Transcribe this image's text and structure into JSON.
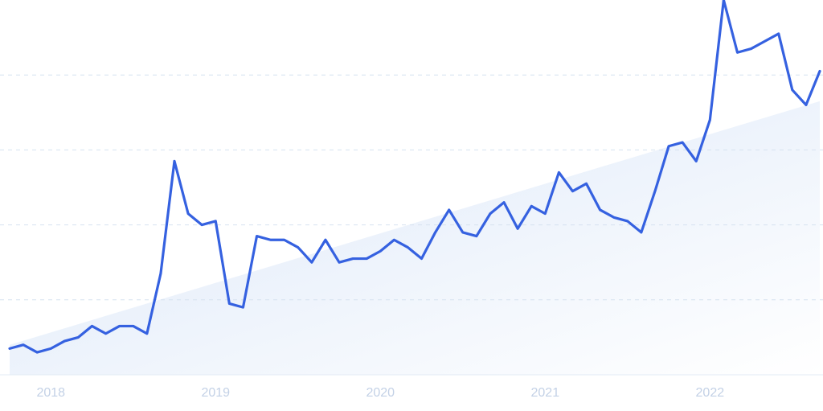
{
  "chart_data": {
    "type": "line",
    "categories": [
      null,
      null,
      null,
      "2018",
      null,
      null,
      null,
      null,
      null,
      null,
      null,
      null,
      null,
      null,
      null,
      "2019",
      null,
      null,
      null,
      null,
      null,
      null,
      null,
      null,
      null,
      null,
      null,
      "2020",
      null,
      null,
      null,
      null,
      null,
      null,
      null,
      null,
      null,
      null,
      null,
      "2021",
      null,
      null,
      null,
      null,
      null,
      null,
      null,
      null,
      null,
      null,
      null,
      "2022",
      null,
      null,
      null,
      null,
      null,
      null,
      null,
      null
    ],
    "series": [
      {
        "color": "#3561e0",
        "values": [
          7,
          8,
          6,
          7,
          9,
          10,
          13,
          11,
          13,
          13,
          11,
          27,
          57,
          43,
          40,
          41,
          19,
          18,
          37,
          36,
          36,
          34,
          30,
          36,
          30,
          31,
          31,
          33,
          36,
          34,
          31,
          38,
          44,
          38,
          37,
          43,
          46,
          39,
          45,
          43,
          54,
          49,
          51,
          44,
          42,
          41,
          38,
          49,
          61,
          62,
          57,
          68,
          100,
          86,
          87,
          89,
          91,
          76,
          72,
          81
        ]
      }
    ],
    "trend": {
      "color": "#dce8f8",
      "values": [
        8,
        73
      ]
    },
    "ylim": [
      0,
      100
    ],
    "yticks": [
      20,
      40,
      60,
      80
    ],
    "grid": true
  }
}
